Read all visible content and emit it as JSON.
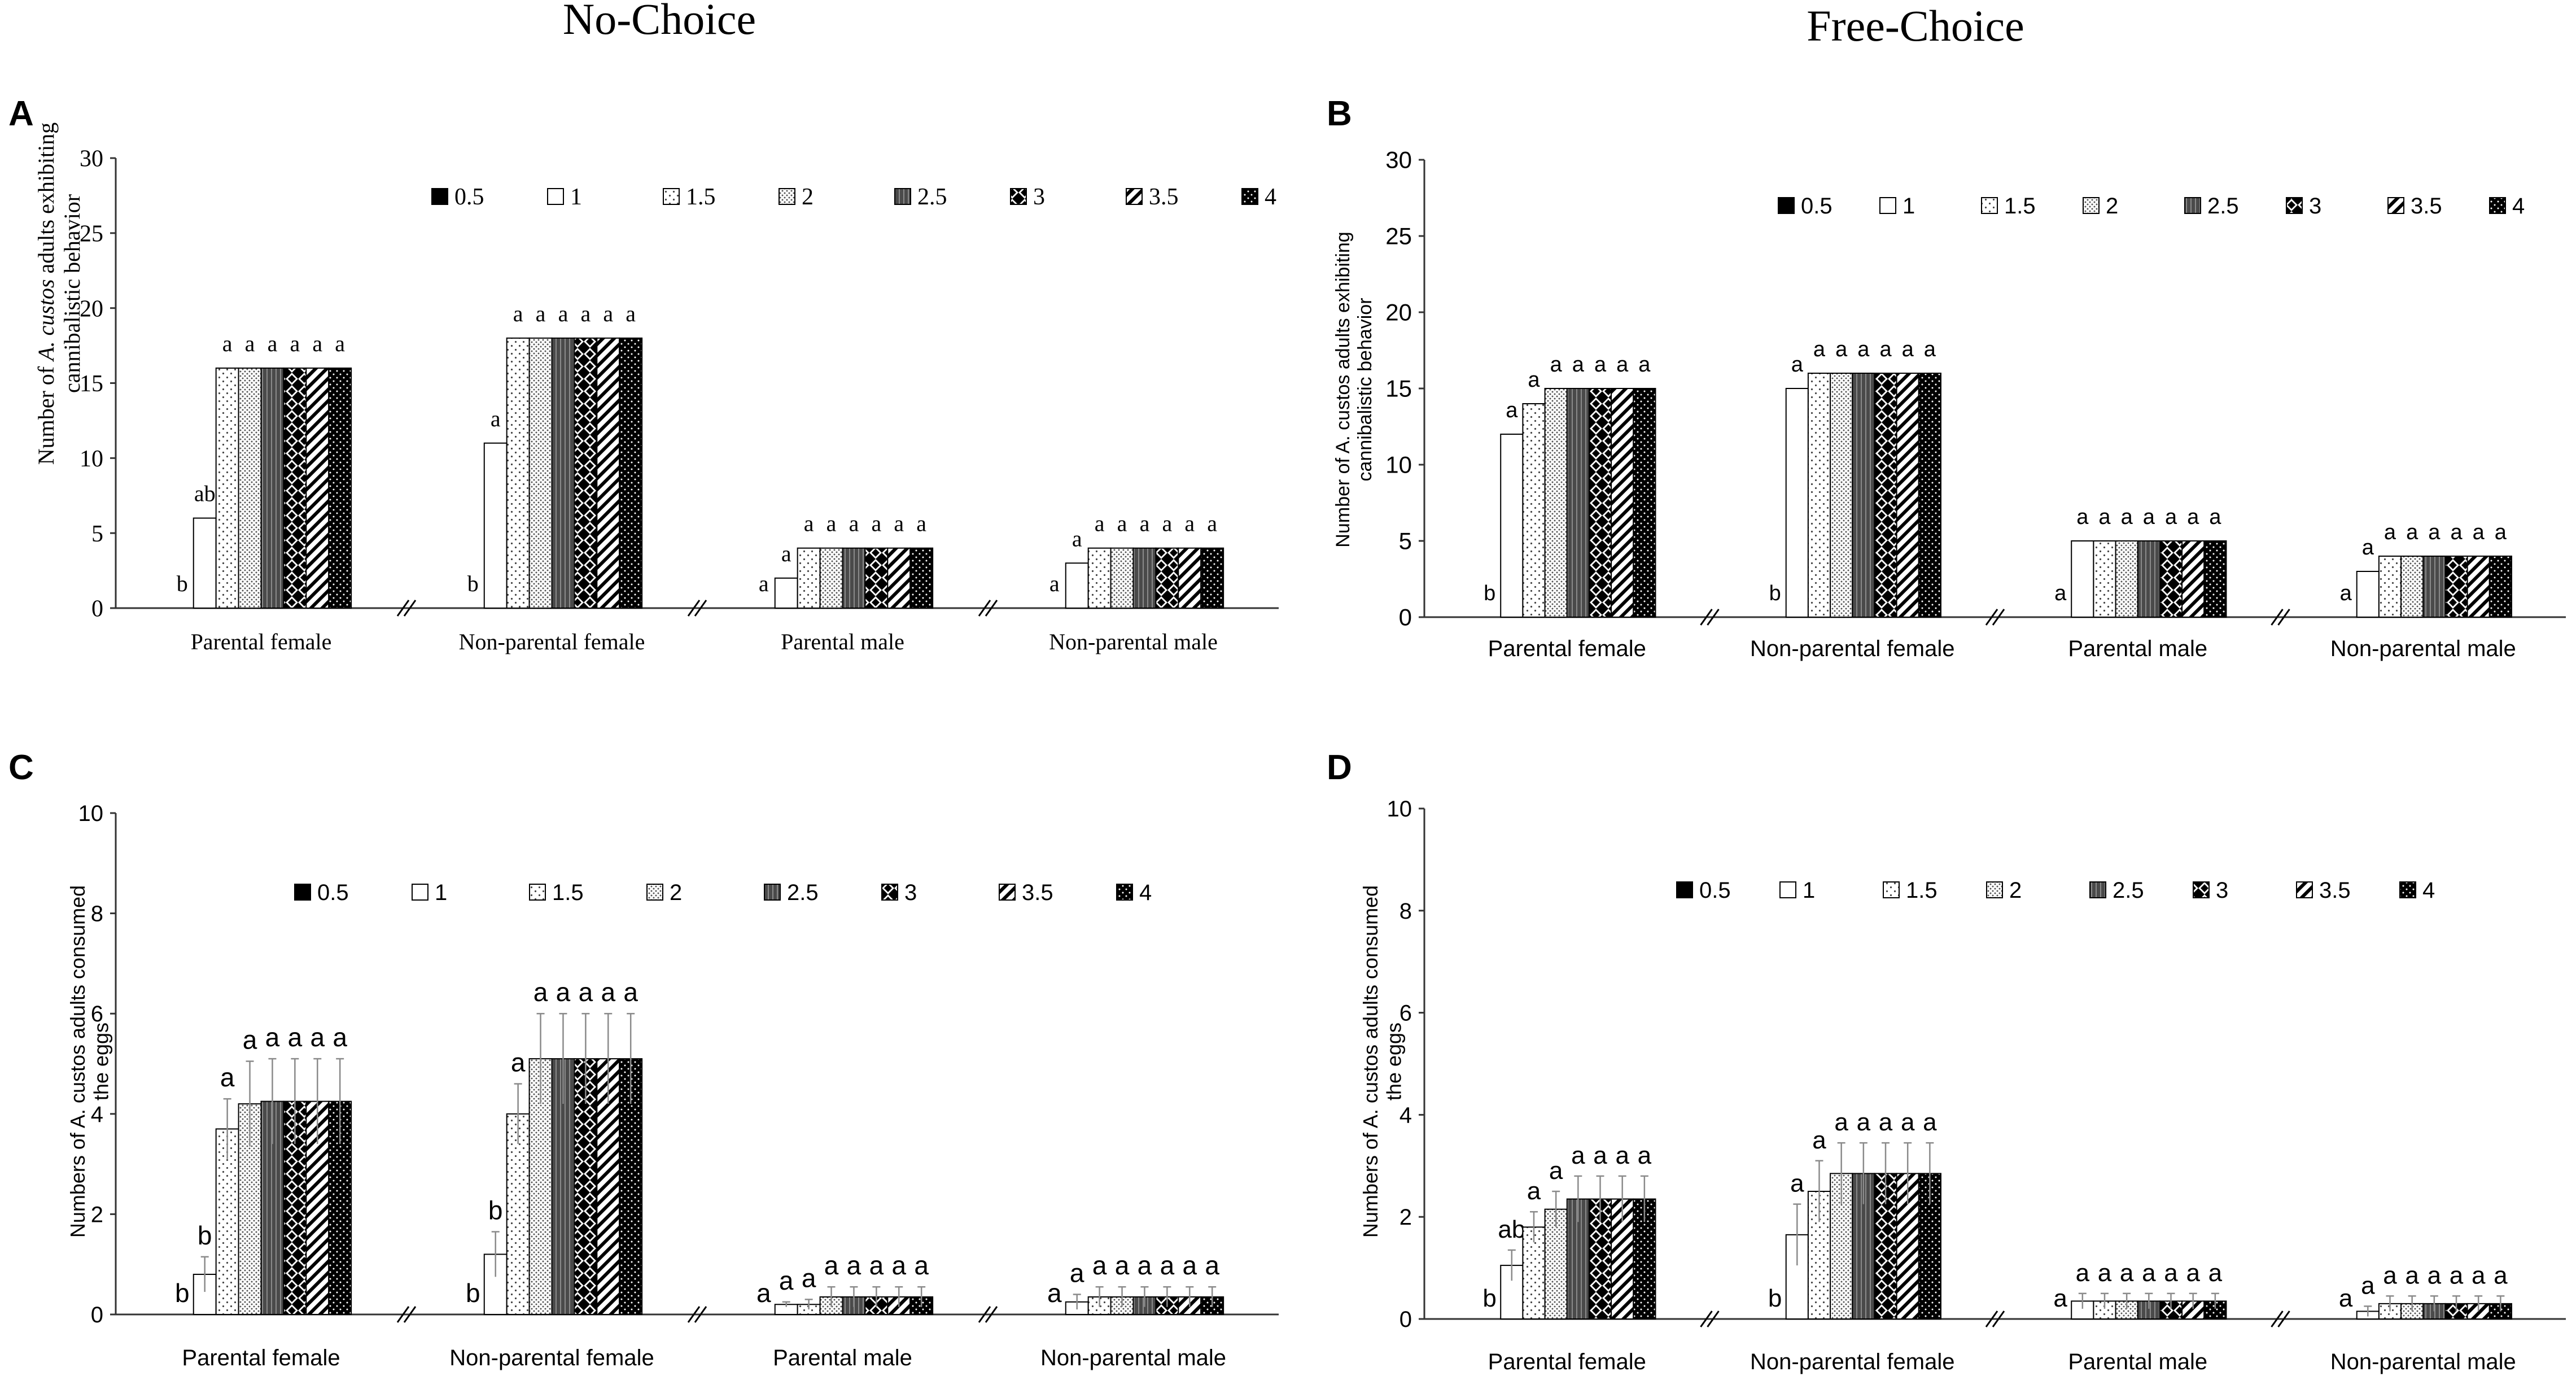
{
  "figure": {
    "column_titles": [
      "No-Choice",
      "Free-Choice"
    ]
  },
  "colors": {
    "bar_stroke": "#000000",
    "axis": "#333333",
    "error_bar": "#8a8a8a",
    "background": "#ffffff"
  },
  "chart_data": [
    {
      "panel": "A",
      "type": "bar",
      "title": "",
      "ylabel_lines": [
        "Number of A. custos adults exhibiting",
        "cannibalistic behavior"
      ],
      "ylabel_italic": "A. custos",
      "xlabel": "",
      "ylim": [
        0,
        30
      ],
      "yticks": [
        0,
        5,
        10,
        15,
        20,
        25,
        30
      ],
      "categories": [
        "Parental female",
        "Non-parental female",
        "Parental male",
        "Non-parental male"
      ],
      "legend": [
        "0.5",
        "1",
        "1.5",
        "2",
        "2.5",
        "3",
        "3.5",
        "4"
      ],
      "legend_position": "top",
      "series": [
        {
          "name": "0.5",
          "values": [
            0,
            0,
            0,
            0
          ]
        },
        {
          "name": "1",
          "values": [
            6,
            11,
            2,
            3
          ]
        },
        {
          "name": "1.5",
          "values": [
            16,
            18,
            4,
            4
          ]
        },
        {
          "name": "2",
          "values": [
            16,
            18,
            4,
            4
          ]
        },
        {
          "name": "2.5",
          "values": [
            16,
            18,
            4,
            4
          ]
        },
        {
          "name": "3",
          "values": [
            16,
            18,
            4,
            4
          ]
        },
        {
          "name": "3.5",
          "values": [
            16,
            18,
            4,
            4
          ]
        },
        {
          "name": "4",
          "values": [
            16,
            18,
            4,
            4
          ]
        }
      ],
      "letters": [
        [
          "b",
          "ab",
          "a",
          "a",
          "a",
          "a",
          "a",
          "a"
        ],
        [
          "b",
          "a",
          "a",
          "a",
          "a",
          "a",
          "a",
          "a"
        ],
        [
          "a",
          "a",
          "a",
          "a",
          "a",
          "a",
          "a",
          "a"
        ],
        [
          "a",
          "a",
          "a",
          "a",
          "a",
          "a",
          "a",
          "a"
        ]
      ],
      "error_bars": false
    },
    {
      "panel": "B",
      "type": "bar",
      "title": "",
      "ylabel_lines": [
        "Number of A. custos adults exhibiting",
        "cannibalistic behavior"
      ],
      "ylabel_italic": "",
      "xlabel": "",
      "ylim": [
        0,
        30
      ],
      "yticks": [
        0,
        5,
        10,
        15,
        20,
        25,
        30
      ],
      "categories": [
        "Parental female",
        "Non-parental female",
        "Parental male",
        "Non-parental male"
      ],
      "legend": [
        "0.5",
        "1",
        "1.5",
        "2",
        "2.5",
        "3",
        "3.5",
        "4"
      ],
      "legend_position": "top",
      "series": [
        {
          "name": "0.5",
          "values": [
            0,
            0,
            0,
            0
          ]
        },
        {
          "name": "1",
          "values": [
            12,
            15,
            5,
            3
          ]
        },
        {
          "name": "1.5",
          "values": [
            14,
            16,
            5,
            4
          ]
        },
        {
          "name": "2",
          "values": [
            15,
            16,
            5,
            4
          ]
        },
        {
          "name": "2.5",
          "values": [
            15,
            16,
            5,
            4
          ]
        },
        {
          "name": "3",
          "values": [
            15,
            16,
            5,
            4
          ]
        },
        {
          "name": "3.5",
          "values": [
            15,
            16,
            5,
            4
          ]
        },
        {
          "name": "4",
          "values": [
            15,
            16,
            5,
            4
          ]
        }
      ],
      "letters": [
        [
          "b",
          "a",
          "a",
          "a",
          "a",
          "a",
          "a",
          "a"
        ],
        [
          "b",
          "a",
          "a",
          "a",
          "a",
          "a",
          "a",
          "a"
        ],
        [
          "a",
          "a",
          "a",
          "a",
          "a",
          "a",
          "a",
          "a"
        ],
        [
          "a",
          "a",
          "a",
          "a",
          "a",
          "a",
          "a",
          "a"
        ]
      ],
      "error_bars": false
    },
    {
      "panel": "C",
      "type": "bar",
      "title": "",
      "ylabel_lines": [
        "Numbers  of A. custos adults consumed",
        "the eggs"
      ],
      "ylabel_italic": "",
      "xlabel": "",
      "ylim": [
        0,
        10
      ],
      "yticks": [
        0,
        2,
        4,
        6,
        8,
        10
      ],
      "categories": [
        "Parental female",
        "Non-parental female",
        "Parental male",
        "Non-parental male"
      ],
      "legend": [
        "0.5",
        "1",
        "1.5",
        "2",
        "2.5",
        "3",
        "3.5",
        "4"
      ],
      "legend_position": "top",
      "series": [
        {
          "name": "0.5",
          "values": [
            0,
            0,
            0,
            0
          ],
          "errors": [
            0,
            0,
            0,
            0
          ]
        },
        {
          "name": "1",
          "values": [
            0.8,
            1.2,
            0.2,
            0.25
          ],
          "errors": [
            0.35,
            0.45,
            0.05,
            0.15
          ]
        },
        {
          "name": "1.5",
          "values": [
            3.7,
            4.0,
            0.2,
            0.35
          ],
          "errors": [
            0.6,
            0.6,
            0.1,
            0.2
          ]
        },
        {
          "name": "2",
          "values": [
            4.2,
            5.1,
            0.35,
            0.35
          ],
          "errors": [
            0.85,
            0.9,
            0.2,
            0.2
          ]
        },
        {
          "name": "2.5",
          "values": [
            4.25,
            5.1,
            0.35,
            0.35
          ],
          "errors": [
            0.85,
            0.9,
            0.2,
            0.2
          ]
        },
        {
          "name": "3",
          "values": [
            4.25,
            5.1,
            0.35,
            0.35
          ],
          "errors": [
            0.85,
            0.9,
            0.2,
            0.2
          ]
        },
        {
          "name": "3.5",
          "values": [
            4.25,
            5.1,
            0.35,
            0.35
          ],
          "errors": [
            0.85,
            0.9,
            0.2,
            0.2
          ]
        },
        {
          "name": "4",
          "values": [
            4.25,
            5.1,
            0.35,
            0.35
          ],
          "errors": [
            0.85,
            0.9,
            0.2,
            0.2
          ]
        }
      ],
      "letters": [
        [
          "b",
          "b",
          "a",
          "a",
          "a",
          "a",
          "a",
          "a"
        ],
        [
          "b",
          "b",
          "a",
          "a",
          "a",
          "a",
          "a",
          "a"
        ],
        [
          "a",
          "a",
          "a",
          "a",
          "a",
          "a",
          "a",
          "a"
        ],
        [
          "a",
          "a",
          "a",
          "a",
          "a",
          "a",
          "a",
          "a"
        ]
      ],
      "error_bars": true
    },
    {
      "panel": "D",
      "type": "bar",
      "title": "",
      "ylabel_lines": [
        "Numbers  of A. custos adults  consumed",
        "the eggs"
      ],
      "ylabel_italic": "",
      "xlabel": "",
      "ylim": [
        0,
        10
      ],
      "yticks": [
        0,
        2,
        4,
        6,
        8,
        10
      ],
      "categories": [
        "Parental female",
        "Non-parental female",
        "Parental male",
        "Non-parental male"
      ],
      "legend": [
        "0.5",
        "1",
        "1.5",
        "2",
        "2.5",
        "3",
        "3.5",
        "4"
      ],
      "legend_position": "top",
      "series": [
        {
          "name": "0.5",
          "values": [
            0,
            0,
            0,
            0
          ],
          "errors": [
            0,
            0,
            0,
            0
          ]
        },
        {
          "name": "1",
          "values": [
            1.05,
            1.65,
            0.35,
            0.15
          ],
          "errors": [
            0.3,
            0.6,
            0.15,
            0.1
          ]
        },
        {
          "name": "1.5",
          "values": [
            1.8,
            2.5,
            0.35,
            0.3
          ],
          "errors": [
            0.3,
            0.6,
            0.15,
            0.15
          ]
        },
        {
          "name": "2",
          "values": [
            2.15,
            2.85,
            0.35,
            0.3
          ],
          "errors": [
            0.35,
            0.6,
            0.15,
            0.15
          ]
        },
        {
          "name": "2.5",
          "values": [
            2.35,
            2.85,
            0.35,
            0.3
          ],
          "errors": [
            0.45,
            0.6,
            0.15,
            0.15
          ]
        },
        {
          "name": "3",
          "values": [
            2.35,
            2.85,
            0.35,
            0.3
          ],
          "errors": [
            0.45,
            0.6,
            0.15,
            0.15
          ]
        },
        {
          "name": "3.5",
          "values": [
            2.35,
            2.85,
            0.35,
            0.3
          ],
          "errors": [
            0.45,
            0.6,
            0.15,
            0.15
          ]
        },
        {
          "name": "4",
          "values": [
            2.35,
            2.85,
            0.35,
            0.3
          ],
          "errors": [
            0.45,
            0.6,
            0.15,
            0.15
          ]
        }
      ],
      "letters": [
        [
          "b",
          "ab",
          "a",
          "a",
          "a",
          "a",
          "a",
          "a"
        ],
        [
          "b",
          "a",
          "a",
          "a",
          "a",
          "a",
          "a",
          "a"
        ],
        [
          "a",
          "a",
          "a",
          "a",
          "a",
          "a",
          "a",
          "a"
        ],
        [
          "a",
          "a",
          "a",
          "a",
          "a",
          "a",
          "a",
          "a"
        ]
      ],
      "error_bars": true
    }
  ]
}
